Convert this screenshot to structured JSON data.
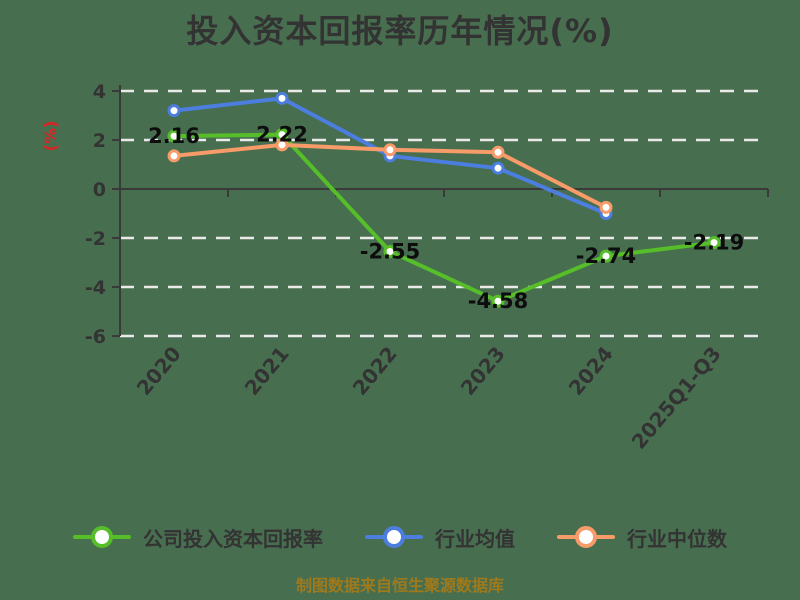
{
  "title": "投入资本回报率历年情况(%)",
  "footer": {
    "text": "制图数据来自恒生聚源数据库"
  },
  "colors": {
    "background": "#486E50",
    "title": "#333333",
    "axis": "#3A3A3A",
    "tick_label": "#333333",
    "grid": "#EAEAEA",
    "y_axis_name": "#DD2222",
    "data_label": "#0D0D0D",
    "footer": "#9E7A1C",
    "legend_text": "#333333",
    "marker_fill": "#FFFFFF"
  },
  "chart_data": {
    "type": "line",
    "title": "投入资本回报率历年情况(%)",
    "xlabel": "",
    "ylabel": "(%)",
    "categories": [
      "2020",
      "2021",
      "2022",
      "2023",
      "2024",
      "2025Q1-Q3"
    ],
    "ylim": [
      -6,
      4
    ],
    "yticks": [
      4,
      2,
      0,
      -2,
      -4,
      -6
    ],
    "grid": "horizontal-dashed-white",
    "legend_position": "bottom",
    "x_label_rotation": -50,
    "series": [
      {
        "name": "公司投入资本回报率",
        "color": "#56BE29",
        "values": [
          2.16,
          2.22,
          -2.55,
          -4.58,
          -2.74,
          -2.19
        ],
        "point_labels": [
          "2.16",
          "2.22",
          "-2.55",
          "-4.58",
          "-2.74",
          "-2.19"
        ]
      },
      {
        "name": "行业均值",
        "color": "#4C7EE0",
        "values": [
          3.2,
          3.7,
          1.35,
          0.85,
          -1.0
        ],
        "point_labels": []
      },
      {
        "name": "行业中位数",
        "color": "#F79B69",
        "values": [
          1.35,
          1.8,
          1.6,
          1.5,
          -0.75
        ],
        "point_labels": []
      }
    ]
  }
}
